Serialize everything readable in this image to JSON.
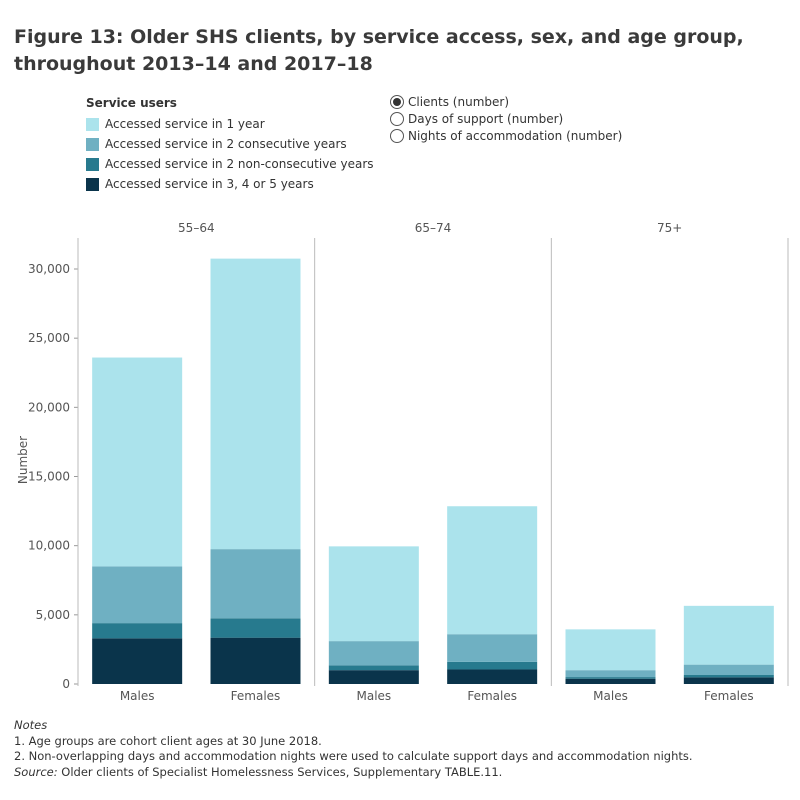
{
  "title": "Figure 13: Older SHS clients, by service access, sex, and age group, throughout 2013–14 and 2017–18",
  "legend": {
    "title": "Service users",
    "items": [
      {
        "label": "Accessed service in 1 year",
        "color": "#abe3ec"
      },
      {
        "label": "Accessed service in 2 consecutive years",
        "color": "#6fb0c2"
      },
      {
        "label": "Accessed service in 2 non-consecutive years",
        "color": "#277a8e"
      },
      {
        "label": "Accessed service in 3, 4 or 5 years",
        "color": "#0a344b"
      }
    ]
  },
  "measure_selector": {
    "options": [
      {
        "label": "Clients (number)",
        "selected": true
      },
      {
        "label": "Days of support (number)",
        "selected": false
      },
      {
        "label": "Nights of accommodation (number)",
        "selected": false
      }
    ]
  },
  "chart_data": {
    "type": "bar",
    "stacked": true,
    "ylabel": "Number",
    "ylim": [
      0,
      32000
    ],
    "yticks": [
      0,
      5000,
      10000,
      15000,
      20000,
      25000,
      30000
    ],
    "ytick_labels": [
      "0",
      "5,000",
      "10,000",
      "15,000",
      "20,000",
      "25,000",
      "30,000"
    ],
    "panels": [
      {
        "label": "55–64",
        "categories": [
          "Males",
          "Females"
        ],
        "series": [
          {
            "name": "Accessed service in 3, 4 or 5 years",
            "values": [
              3300,
              3350
            ]
          },
          {
            "name": "Accessed service in 2 non-consecutive years",
            "values": [
              1100,
              1400
            ]
          },
          {
            "name": "Accessed service in 2 consecutive years",
            "values": [
              4100,
              5000
            ]
          },
          {
            "name": "Accessed service in 1 year",
            "values": [
              15100,
              21000
            ]
          }
        ]
      },
      {
        "label": "65–74",
        "categories": [
          "Males",
          "Females"
        ],
        "series": [
          {
            "name": "Accessed service in 3, 4 or 5 years",
            "values": [
              1000,
              1050
            ]
          },
          {
            "name": "Accessed service in 2 non-consecutive years",
            "values": [
              350,
              550
            ]
          },
          {
            "name": "Accessed service in 2 consecutive years",
            "values": [
              1750,
              2000
            ]
          },
          {
            "name": "Accessed service in 1 year",
            "values": [
              6850,
              9250
            ]
          }
        ]
      },
      {
        "label": "75+",
        "categories": [
          "Males",
          "Females"
        ],
        "series": [
          {
            "name": "Accessed service in 3, 4 or 5 years",
            "values": [
              380,
              480
            ]
          },
          {
            "name": "Accessed service in 2 non-consecutive years",
            "values": [
              120,
              170
            ]
          },
          {
            "name": "Accessed service in 2 consecutive years",
            "values": [
              500,
              750
            ]
          },
          {
            "name": "Accessed service in 1 year",
            "values": [
              2950,
              4250
            ]
          }
        ]
      }
    ]
  },
  "notes": {
    "heading": "Notes",
    "lines": [
      "1. Age groups are cohort client ages at 30 June 2018.",
      "2. Non-overlapping days and accommodation nights were used to calculate support days and accommodation nights."
    ],
    "source_label": "Source:",
    "source_text": " Older clients of Specialist Homelessness Services, Supplementary TABLE.11."
  }
}
